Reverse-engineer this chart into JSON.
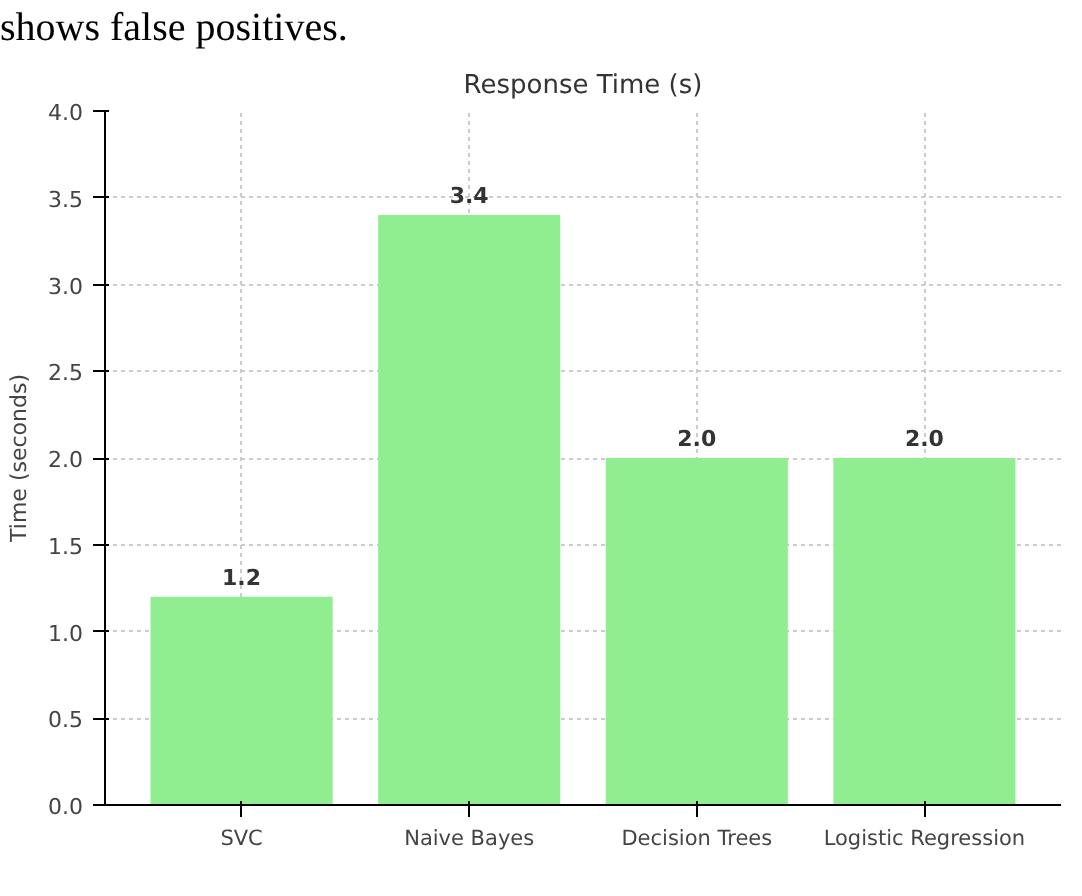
{
  "chart_data": {
    "type": "bar",
    "title": "Response Time (s)",
    "ylabel": "Time (seconds)",
    "categories": [
      "SVC",
      "Naive Bayes",
      "Decision Trees",
      "Logistic Regression"
    ],
    "values": [
      1.2,
      3.4,
      2.0,
      2.0
    ],
    "color": "#90ee90",
    "ylim": [
      0,
      4.0
    ],
    "yticks": [
      {
        "value": 0,
        "label": "0.0"
      },
      0.5,
      {
        "value": 1,
        "label": "1.0"
      },
      1.5,
      {
        "value": 2,
        "label": "2.0"
      },
      2.5,
      {
        "value": 3,
        "label": "3.0"
      },
      3.5,
      {
        "value": 4,
        "label": "4.0"
      }
    ],
    "grid": true,
    "value_labels": [
      "1.2",
      "3.4",
      "2.0",
      "2.0"
    ],
    "annotations": [
      "shows false positives."
    ]
  }
}
